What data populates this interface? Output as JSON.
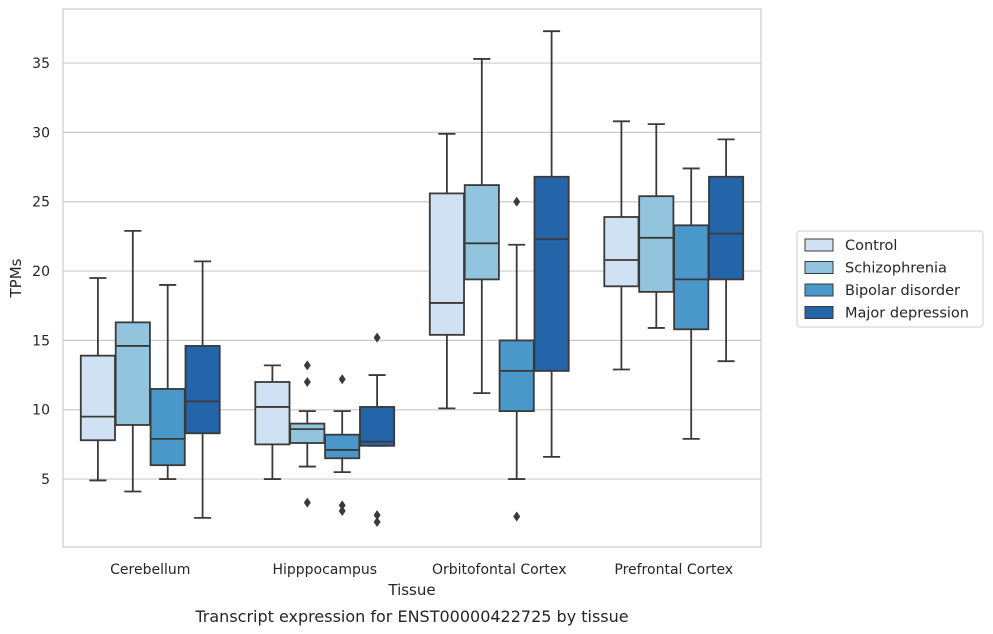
{
  "chart_data": {
    "type": "box",
    "xlabel": "Tissue",
    "ylabel": "TPMs",
    "caption": "Transcript expression for ENST00000422725 by tissue",
    "ylim": [
      0.1,
      38.9
    ],
    "yticks": [
      5,
      10,
      15,
      20,
      25,
      30,
      35
    ],
    "grid": "horizontal",
    "legend_position": "right",
    "categories": [
      "Cerebellum",
      "Hipppocampus",
      "Orbitofontal Cortex",
      "Prefrontal Cortex"
    ],
    "series": [
      {
        "name": "Control",
        "color": "#cfe1f2",
        "boxes": [
          {
            "whislo": 4.9,
            "q1": 7.8,
            "med": 9.5,
            "q3": 13.9,
            "whishi": 19.5,
            "fliers": []
          },
          {
            "whislo": 5.0,
            "q1": 7.5,
            "med": 10.2,
            "q3": 12.0,
            "whishi": 13.2,
            "fliers": []
          },
          {
            "whislo": 10.1,
            "q1": 15.4,
            "med": 17.7,
            "q3": 25.6,
            "whishi": 29.9,
            "fliers": []
          },
          {
            "whislo": 12.9,
            "q1": 18.9,
            "med": 20.8,
            "q3": 23.9,
            "whishi": 30.8,
            "fliers": []
          }
        ]
      },
      {
        "name": "Schizophrenia",
        "color": "#93c4de",
        "boxes": [
          {
            "whislo": 4.1,
            "q1": 8.9,
            "med": 14.6,
            "q3": 16.3,
            "whishi": 22.9,
            "fliers": []
          },
          {
            "whislo": 5.9,
            "q1": 7.6,
            "med": 8.6,
            "q3": 9.0,
            "whishi": 9.9,
            "fliers": [
              13.2,
              12.0,
              3.3
            ]
          },
          {
            "whislo": 11.2,
            "q1": 19.4,
            "med": 22.0,
            "q3": 26.2,
            "whishi": 35.3,
            "fliers": []
          },
          {
            "whislo": 15.9,
            "q1": 18.5,
            "med": 22.4,
            "q3": 25.4,
            "whishi": 30.6,
            "fliers": []
          }
        ]
      },
      {
        "name": "Bipolar disorder",
        "color": "#4a98c9",
        "boxes": [
          {
            "whislo": 5.0,
            "q1": 6.0,
            "med": 7.9,
            "q3": 11.5,
            "whishi": 19.0,
            "fliers": []
          },
          {
            "whislo": 5.5,
            "q1": 6.5,
            "med": 7.1,
            "q3": 8.2,
            "whishi": 9.9,
            "fliers": [
              12.2,
              3.1,
              2.7
            ]
          },
          {
            "whislo": 5.0,
            "q1": 9.9,
            "med": 12.8,
            "q3": 15.0,
            "whishi": 21.9,
            "fliers": [
              25.0,
              2.3
            ]
          },
          {
            "whislo": 7.9,
            "q1": 15.8,
            "med": 19.4,
            "q3": 23.3,
            "whishi": 27.4,
            "fliers": []
          }
        ]
      },
      {
        "name": "Major depression",
        "color": "#2465a9",
        "boxes": [
          {
            "whislo": 2.2,
            "q1": 8.3,
            "med": 10.6,
            "q3": 14.6,
            "whishi": 20.7,
            "fliers": []
          },
          {
            "whislo": 7.4,
            "q1": 7.4,
            "med": 7.7,
            "q3": 10.2,
            "whishi": 12.5,
            "fliers": [
              15.2,
              2.4,
              1.9
            ]
          },
          {
            "whislo": 6.6,
            "q1": 12.8,
            "med": 22.3,
            "q3": 26.8,
            "whishi": 37.3,
            "fliers": []
          },
          {
            "whislo": 13.5,
            "q1": 19.4,
            "med": 22.7,
            "q3": 26.8,
            "whishi": 29.5,
            "fliers": []
          }
        ]
      }
    ]
  }
}
